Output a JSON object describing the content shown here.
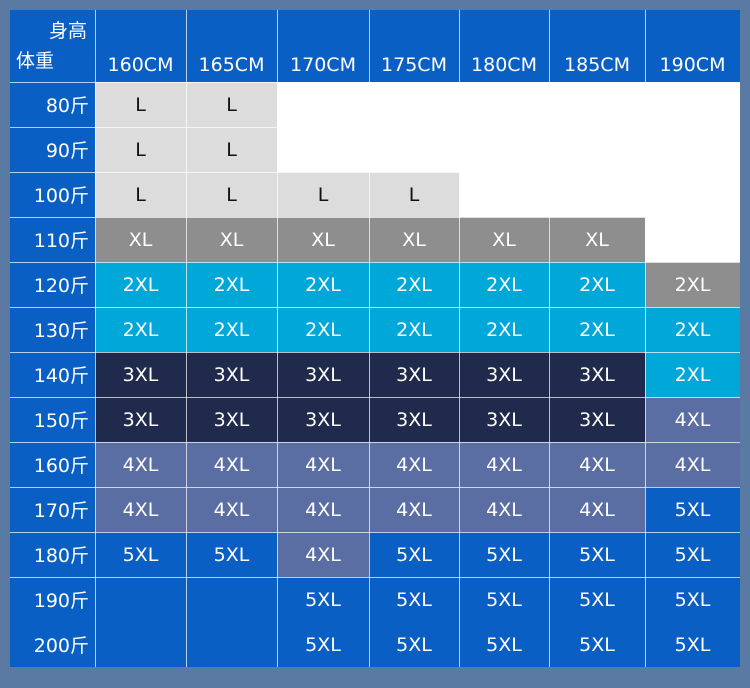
{
  "header": {
    "corner_top": "身高",
    "corner_bottom": "体重",
    "heights": [
      "160CM",
      "165CM",
      "170CM",
      "175CM",
      "180CM",
      "185CM",
      "190CM"
    ]
  },
  "rows": [
    {
      "weight": "80斤",
      "sizes": [
        "L",
        "L",
        null,
        null,
        null,
        null,
        null
      ]
    },
    {
      "weight": "90斤",
      "sizes": [
        "L",
        "L",
        null,
        null,
        null,
        null,
        null
      ]
    },
    {
      "weight": "100斤",
      "sizes": [
        "L",
        "L",
        "L",
        "L",
        null,
        null,
        null
      ]
    },
    {
      "weight": "110斤",
      "sizes": [
        "XL",
        "XL",
        "XL",
        "XL",
        "XL",
        "XL",
        null
      ]
    },
    {
      "weight": "120斤",
      "sizes": [
        "2XL",
        "2XL",
        "2XL",
        "2XL",
        "2XL",
        "2XL",
        "2XL"
      ]
    },
    {
      "weight": "130斤",
      "sizes": [
        "2XL",
        "2XL",
        "2XL",
        "2XL",
        "2XL",
        "2XL",
        "2XL"
      ]
    },
    {
      "weight": "140斤",
      "sizes": [
        "3XL",
        "3XL",
        "3XL",
        "3XL",
        "3XL",
        "3XL",
        "2XL"
      ]
    },
    {
      "weight": "150斤",
      "sizes": [
        "3XL",
        "3XL",
        "3XL",
        "3XL",
        "3XL",
        "3XL",
        "4XL"
      ]
    },
    {
      "weight": "160斤",
      "sizes": [
        "4XL",
        "4XL",
        "4XL",
        "4XL",
        "4XL",
        "4XL",
        "4XL"
      ]
    },
    {
      "weight": "170斤",
      "sizes": [
        "4XL",
        "4XL",
        "4XL",
        "4XL",
        "4XL",
        "4XL",
        "5XL"
      ]
    },
    {
      "weight": "180斤",
      "sizes": [
        "5XL",
        "5XL",
        "4XL",
        "5XL",
        "5XL",
        "5XL",
        "5XL"
      ]
    },
    {
      "weight": "190斤",
      "sizes": [
        null,
        null,
        "5XL",
        "5XL",
        "5XL",
        "5XL",
        "5XL"
      ]
    },
    {
      "weight": "200斤",
      "sizes": [
        null,
        null,
        "5XL",
        "5XL",
        "5XL",
        "5XL",
        "5XL"
      ]
    }
  ],
  "size_colors": {
    "L": "#dcdcdc",
    "XL": "#8e8e8e",
    "2XL": "#00a8da",
    "3XL": "#1f2a4d",
    "4XL": "#5b6ea4",
    "5XL": "#0a5fc4"
  },
  "cell_color_overrides": [
    {
      "row": 4,
      "col": 6,
      "color": "#8e8e8e"
    }
  ]
}
